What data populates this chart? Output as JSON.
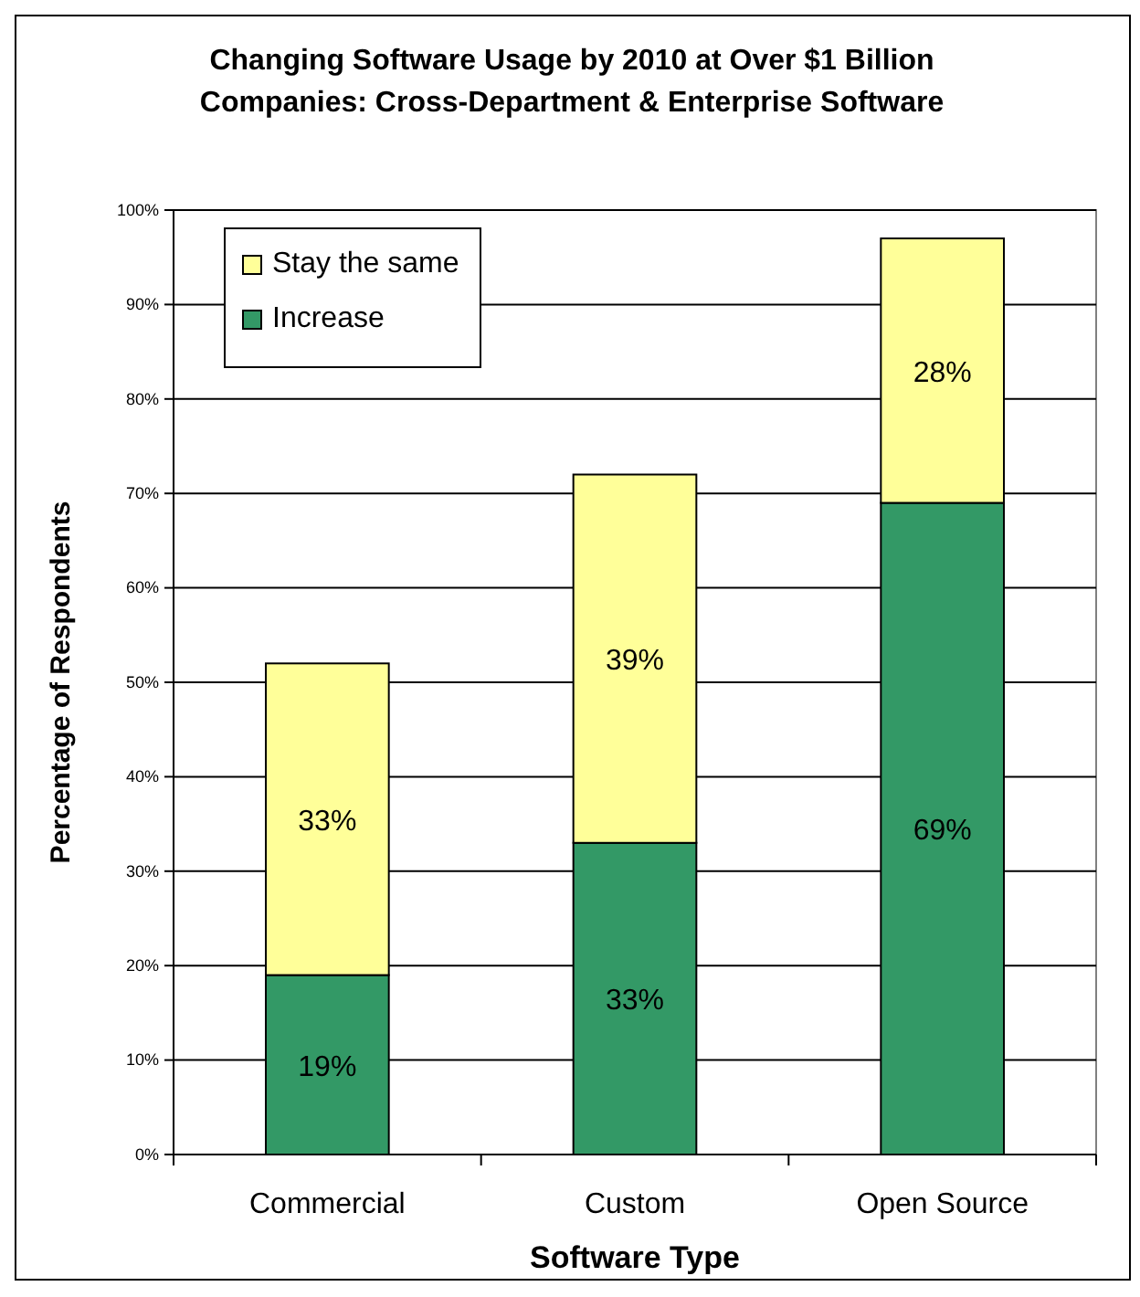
{
  "chart_data": {
    "type": "bar",
    "stacked": true,
    "title": "Changing Software Usage by 2010 at Over $1 Billion Companies:  Cross-Department & Enterprise Software",
    "xlabel": "Software Type",
    "ylabel": "Percentage of Respondents",
    "categories": [
      "Commercial",
      "Custom",
      "Open Source"
    ],
    "series": [
      {
        "name": "Increase",
        "color": "#339966",
        "values": [
          19,
          33,
          69
        ],
        "value_labels": [
          "19%",
          "33%",
          "69%"
        ]
      },
      {
        "name": "Stay the same",
        "color": "#ffff99",
        "values": [
          33,
          39,
          28
        ],
        "value_labels": [
          "33%",
          "39%",
          "28%"
        ]
      }
    ],
    "ylim": [
      0,
      100
    ],
    "yticks": [
      {
        "value": 0,
        "label": "0%"
      },
      {
        "value": 10,
        "label": "10%"
      },
      {
        "value": 20,
        "label": "20%"
      },
      {
        "value": 30,
        "label": "30%"
      },
      {
        "value": 40,
        "label": "40%"
      },
      {
        "value": 50,
        "label": "50%"
      },
      {
        "value": 60,
        "label": "60%"
      },
      {
        "value": 70,
        "label": "70%"
      },
      {
        "value": 80,
        "label": "80%"
      },
      {
        "value": 90,
        "label": "90%"
      },
      {
        "value": 100,
        "label": "100%"
      }
    ],
    "grid": "y",
    "legend": "top left"
  }
}
